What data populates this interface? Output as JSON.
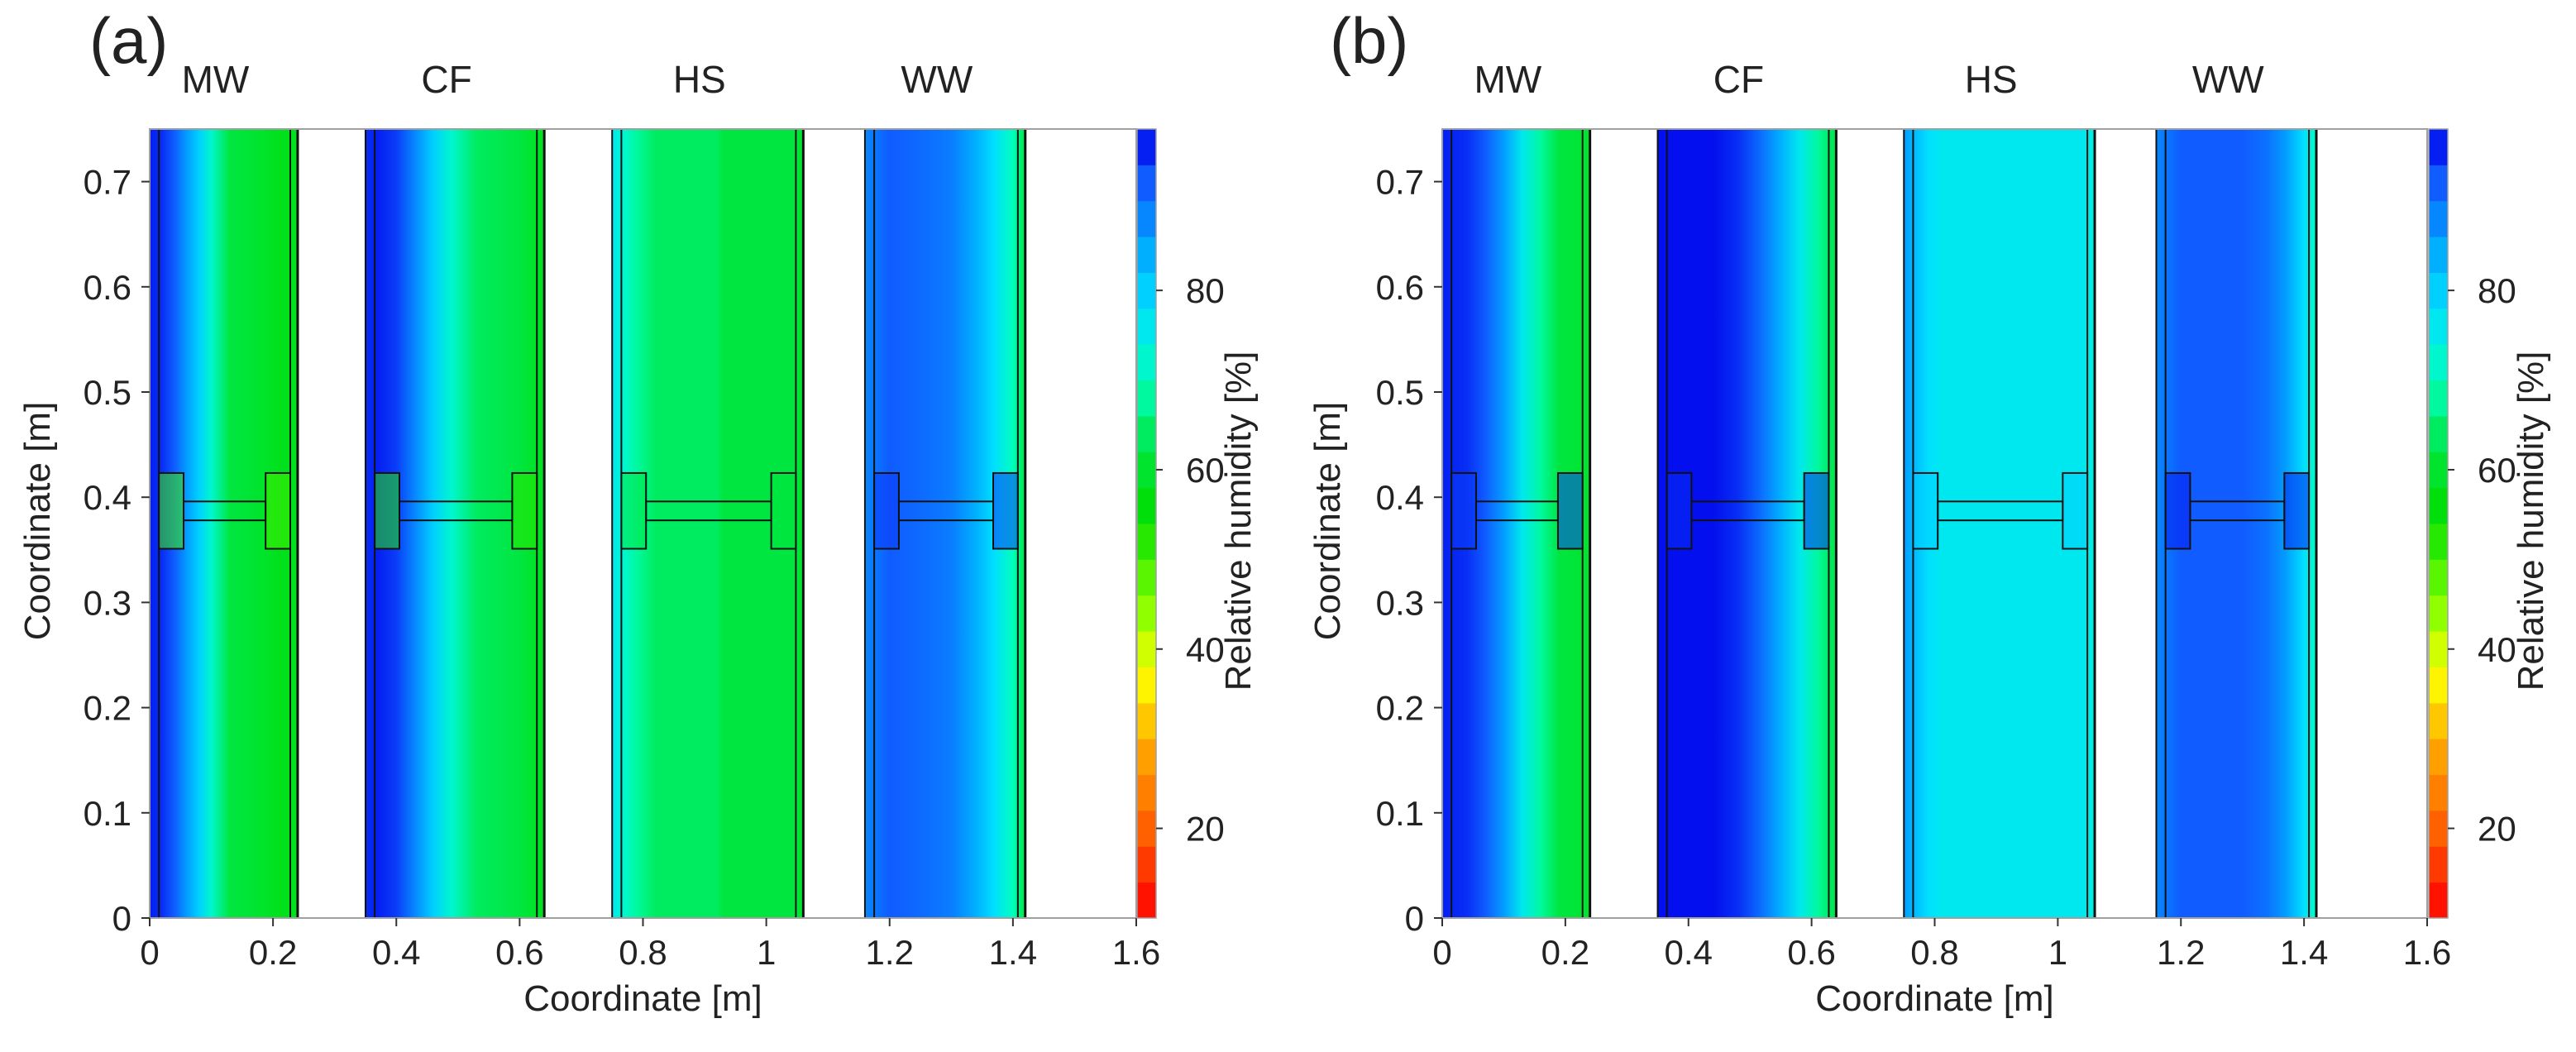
{
  "chart_data": [
    {
      "type": "heatmap",
      "panel_label": "(a)",
      "xlabel": "Coordinate [m]",
      "ylabel": "Coordinate [m]",
      "xlim": [
        0,
        1.6
      ],
      "ylim": [
        0,
        0.75
      ],
      "x_ticks": [
        0,
        0.2,
        0.4,
        0.6,
        0.8,
        1,
        1.2,
        1.4,
        1.6
      ],
      "x_tick_labels": [
        "0",
        "0.2",
        "0.4",
        "0.6",
        "0.8",
        "1",
        "1.2",
        "1.4",
        "1.6"
      ],
      "y_ticks": [
        0,
        0.1,
        0.2,
        0.3,
        0.4,
        0.5,
        0.6,
        0.7
      ],
      "y_tick_labels": [
        "0",
        "0.1",
        "0.2",
        "0.3",
        "0.4",
        "0.5",
        "0.6",
        "0.7"
      ],
      "colorbar": {
        "label": "Relative humidity [%]",
        "range": [
          10,
          98
        ],
        "ticks": [
          20,
          40,
          60,
          80
        ],
        "tick_labels": [
          "20",
          "40",
          "60",
          "80"
        ]
      },
      "walls": [
        {
          "label": "MW",
          "x_range": [
            0.0,
            0.24
          ],
          "rh_profile": [
            [
              0.0,
              96
            ],
            [
              0.02,
              95
            ],
            [
              0.04,
              92
            ],
            [
              0.06,
              86
            ],
            [
              0.08,
              80
            ],
            [
              0.1,
              72
            ],
            [
              0.13,
              62
            ],
            [
              0.18,
              60
            ],
            [
              0.21,
              58
            ],
            [
              0.24,
              58
            ]
          ],
          "cross_section_rh": 50
        },
        {
          "label": "CF",
          "x_range": [
            0.35,
            0.64
          ],
          "rh_profile": [
            [
              0.35,
              95
            ],
            [
              0.37,
              96
            ],
            [
              0.4,
              94
            ],
            [
              0.43,
              88
            ],
            [
              0.46,
              80
            ],
            [
              0.49,
              72
            ],
            [
              0.53,
              64
            ],
            [
              0.6,
              62
            ],
            [
              0.62,
              60
            ],
            [
              0.64,
              58
            ]
          ],
          "cross_section_rh": 52
        },
        {
          "label": "HS",
          "x_range": [
            0.75,
            1.06
          ],
          "rh_profile": [
            [
              0.75,
              76
            ],
            [
              0.77,
              72
            ],
            [
              0.79,
              68
            ],
            [
              0.82,
              64
            ],
            [
              0.92,
              64
            ],
            [
              0.93,
              62
            ],
            [
              1.04,
              62
            ],
            [
              1.06,
              60
            ]
          ],
          "cross_section_rh": 62
        },
        {
          "label": "WW",
          "x_range": [
            1.16,
            1.42
          ],
          "rh_profile": [
            [
              1.16,
              88
            ],
            [
              1.18,
              90
            ],
            [
              1.2,
              92
            ],
            [
              1.24,
              91
            ],
            [
              1.3,
              89
            ],
            [
              1.34,
              84
            ],
            [
              1.37,
              78
            ],
            [
              1.4,
              70
            ],
            [
              1.42,
              62
            ]
          ],
          "cross_section_rh": 94
        }
      ]
    },
    {
      "type": "heatmap",
      "panel_label": "(b)",
      "xlabel": "Coordinate [m]",
      "ylabel": "Coordinate [m]",
      "xlim": [
        0,
        1.6
      ],
      "ylim": [
        0,
        0.75
      ],
      "x_ticks": [
        0,
        0.2,
        0.4,
        0.6,
        0.8,
        1,
        1.2,
        1.4,
        1.6
      ],
      "x_tick_labels": [
        "0",
        "0.2",
        "0.4",
        "0.6",
        "0.8",
        "1",
        "1.2",
        "1.4",
        "1.6"
      ],
      "y_ticks": [
        0,
        0.1,
        0.2,
        0.3,
        0.4,
        0.5,
        0.6,
        0.7
      ],
      "y_tick_labels": [
        "0",
        "0.1",
        "0.2",
        "0.3",
        "0.4",
        "0.5",
        "0.6",
        "0.7"
      ],
      "colorbar": {
        "label": "Relative humidity [%]",
        "range": [
          10,
          98
        ],
        "ticks": [
          20,
          40,
          60,
          80
        ],
        "tick_labels": [
          "20",
          "40",
          "60",
          "80"
        ]
      },
      "walls": [
        {
          "label": "MW",
          "x_range": [
            0.0,
            0.24
          ],
          "rh_profile": [
            [
              0.0,
              96
            ],
            [
              0.04,
              95
            ],
            [
              0.07,
              92
            ],
            [
              0.1,
              86
            ],
            [
              0.13,
              76
            ],
            [
              0.16,
              68
            ],
            [
              0.19,
              62
            ],
            [
              0.24,
              60
            ]
          ],
          "cross_section_rh": 94
        },
        {
          "label": "CF",
          "x_range": [
            0.35,
            0.64
          ],
          "rh_profile": [
            [
              0.35,
              97
            ],
            [
              0.44,
              97
            ],
            [
              0.48,
              95
            ],
            [
              0.52,
              90
            ],
            [
              0.55,
              84
            ],
            [
              0.58,
              76
            ],
            [
              0.61,
              68
            ],
            [
              0.64,
              62
            ]
          ],
          "cross_section_rh": 95
        },
        {
          "label": "HS",
          "x_range": [
            0.75,
            1.06
          ],
          "rh_profile": [
            [
              0.75,
              86
            ],
            [
              0.77,
              82
            ],
            [
              0.79,
              78
            ],
            [
              0.81,
              76
            ],
            [
              1.04,
              76
            ],
            [
              1.06,
              74
            ]
          ],
          "cross_section_rh": 80
        },
        {
          "label": "WW",
          "x_range": [
            1.16,
            1.42
          ],
          "rh_profile": [
            [
              1.16,
              88
            ],
            [
              1.18,
              90
            ],
            [
              1.2,
              92
            ],
            [
              1.3,
              92
            ],
            [
              1.34,
              90
            ],
            [
              1.37,
              86
            ],
            [
              1.4,
              78
            ],
            [
              1.42,
              70
            ]
          ],
          "cross_section_rh": 96
        }
      ]
    }
  ]
}
